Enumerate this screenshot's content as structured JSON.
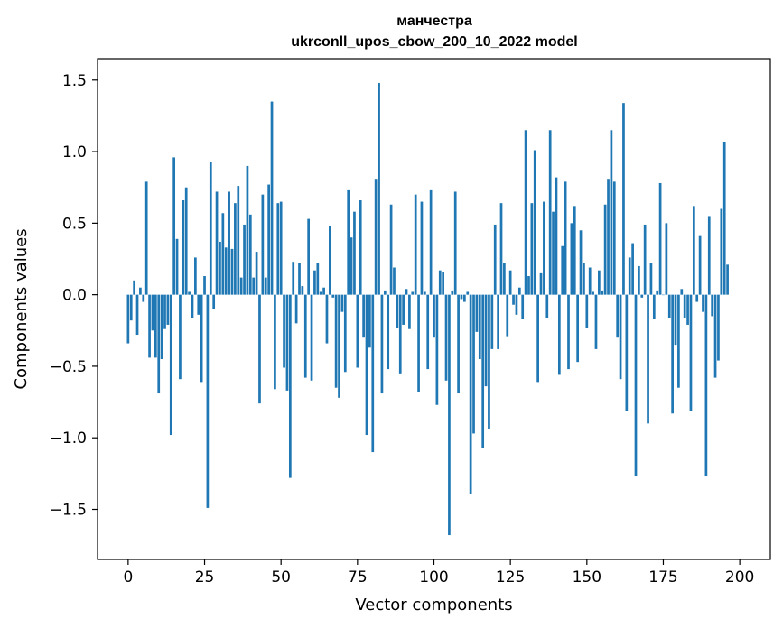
{
  "chart_data": {
    "type": "bar",
    "title": "манчестра",
    "subtitle": "ukrconll_upos_cbow_200_10_2022 model",
    "xlabel": "Vector components",
    "ylabel": "Components values",
    "xlim": [
      -10,
      210
    ],
    "ylim": [
      -1.85,
      1.65
    ],
    "xticks": [
      0,
      25,
      50,
      75,
      100,
      125,
      150,
      175,
      200
    ],
    "xtick_labels": [
      "0",
      "25",
      "50",
      "75",
      "100",
      "125",
      "150",
      "175",
      "200"
    ],
    "yticks": [
      -1.5,
      -1.0,
      -0.5,
      0.0,
      0.5,
      1.0,
      1.5
    ],
    "ytick_labels": [
      "−1.5",
      "−1.0",
      "−0.5",
      "0.0",
      "0.5",
      "1.0",
      "1.5"
    ],
    "grid": false,
    "bar_color": "#1f77b4",
    "values": [
      -0.34,
      -0.18,
      0.1,
      -0.28,
      0.05,
      -0.05,
      0.79,
      -0.44,
      -0.25,
      -0.44,
      -0.69,
      -0.45,
      -0.24,
      -0.21,
      -0.98,
      0.96,
      0.39,
      -0.59,
      0.66,
      0.75,
      0.02,
      -0.16,
      0.26,
      -0.14,
      -0.61,
      0.13,
      -1.49,
      0.93,
      -0.1,
      0.72,
      0.37,
      0.57,
      0.33,
      0.72,
      0.32,
      0.64,
      0.76,
      0.12,
      0.49,
      0.9,
      0.56,
      0.12,
      0.3,
      -0.76,
      0.7,
      0.12,
      0.77,
      1.35,
      -0.66,
      0.64,
      0.65,
      -0.51,
      -0.67,
      -1.28,
      0.23,
      -0.2,
      0.22,
      0.06,
      -0.58,
      0.53,
      -0.6,
      0.17,
      0.22,
      0.02,
      0.05,
      -0.34,
      0.48,
      -0.02,
      -0.65,
      -0.72,
      -0.12,
      -0.54,
      0.73,
      0.4,
      0.58,
      -0.51,
      0.66,
      -0.3,
      -0.98,
      -0.37,
      -1.1,
      0.81,
      1.48,
      -0.69,
      0.03,
      -0.52,
      0.63,
      0.19,
      -0.23,
      -0.55,
      -0.21,
      0.04,
      -0.24,
      0.02,
      0.7,
      -0.68,
      0.65,
      0.02,
      -0.52,
      0.73,
      -0.3,
      -0.77,
      0.17,
      0.16,
      -0.6,
      -1.68,
      0.03,
      0.72,
      -0.69,
      -0.03,
      -0.05,
      0.02,
      -1.39,
      -0.97,
      -0.26,
      -0.45,
      -1.07,
      -0.64,
      -0.94,
      -0.38,
      0.49,
      -0.38,
      0.64,
      0.22,
      -0.29,
      0.17,
      -0.07,
      -0.14,
      0.05,
      -0.17,
      1.15,
      0.13,
      0.64,
      1.01,
      -0.61,
      0.15,
      0.65,
      -0.16,
      1.15,
      0.58,
      0.82,
      -0.56,
      0.34,
      0.79,
      -0.52,
      0.5,
      0.62,
      -0.47,
      0.45,
      0.22,
      -0.23,
      0.19,
      0.02,
      -0.38,
      0.17,
      0.03,
      0.63,
      0.81,
      1.15,
      0.79,
      -0.3,
      -0.59,
      1.34,
      -0.81,
      0.26,
      0.36,
      -1.27,
      0.2,
      -0.02,
      0.49,
      -0.9,
      0.22,
      -0.17,
      0.03,
      0.78,
      0.0,
      0.5,
      -0.16,
      -0.83,
      -0.35,
      -0.65,
      0.04,
      -0.16,
      -0.21,
      -0.81,
      0.62,
      -0.05,
      0.41,
      -0.12,
      -1.27,
      0.55,
      -0.15,
      -0.58,
      -0.46,
      0.6,
      1.07,
      0.21
    ]
  }
}
